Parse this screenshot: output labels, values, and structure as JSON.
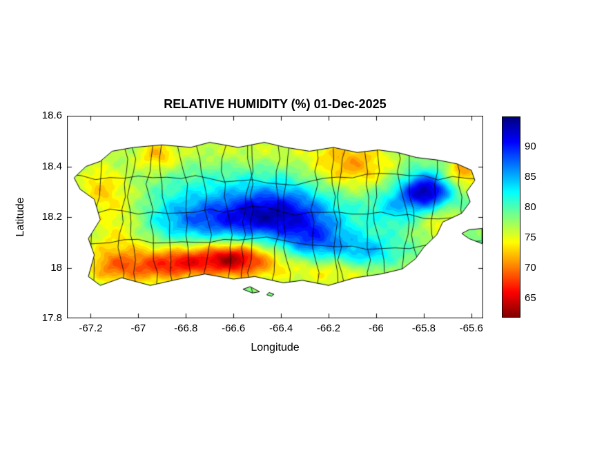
{
  "figure": {
    "background": "#ffffff"
  },
  "chart_data": {
    "type": "heatmap",
    "title": "RELATIVE HUMIDITY (%) 01-Dec-2025",
    "xlabel": "Longitude",
    "ylabel": "Latitude",
    "region": "Puerto Rico",
    "units": "%",
    "grid": false,
    "xlim": [
      -67.3,
      -65.55
    ],
    "ylim": [
      17.8,
      18.6
    ],
    "xticks": [
      -67.2,
      -67,
      -66.8,
      -66.6,
      -66.4,
      -66.2,
      -66,
      -65.8,
      -65.6
    ],
    "xtick_labels": [
      "-67.2",
      "-67",
      "-66.8",
      "-66.6",
      "-66.4",
      "-66.2",
      "-66",
      "-65.8",
      "-65.6"
    ],
    "yticks": [
      17.8,
      18,
      18.2,
      18.4,
      18.6
    ],
    "ytick_labels": [
      "17.8",
      "18",
      "18.2",
      "18.4",
      "18.6"
    ],
    "line_color": "#000000",
    "levels": 33,
    "colorbar": {
      "position": "right",
      "colormap": "jet-flipped",
      "clim": [
        62,
        95
      ],
      "ticks": [
        65,
        70,
        75,
        80,
        85,
        90
      ],
      "tick_labels": [
        "65",
        "70",
        "75",
        "80",
        "85",
        "90"
      ]
    },
    "field": {
      "base": 79,
      "ripple": {
        "amp": 0.9,
        "fx": 41,
        "fy": 57
      },
      "blobs": [
        {
          "lon": -66.62,
          "lat": 18.19,
          "slon": 0.26,
          "slat": 0.065,
          "amp": 10
        },
        {
          "lon": -66.4,
          "lat": 18.23,
          "slon": 0.14,
          "slat": 0.07,
          "amp": 7
        },
        {
          "lon": -66.26,
          "lat": 18.1,
          "slon": 0.1,
          "slat": 0.06,
          "amp": 8
        },
        {
          "lon": -66.04,
          "lat": 18.05,
          "slon": 0.09,
          "slat": 0.05,
          "amp": 7
        },
        {
          "lon": -65.79,
          "lat": 18.3,
          "slon": 0.075,
          "slat": 0.05,
          "amp": 15
        },
        {
          "lon": -66.62,
          "lat": 18.03,
          "slon": 0.15,
          "slat": 0.055,
          "amp": -13
        },
        {
          "lon": -66.6,
          "lat": 18.04,
          "slon": 0.06,
          "slat": 0.03,
          "amp": -3
        },
        {
          "lon": -67.08,
          "lat": 18.17,
          "slon": 0.11,
          "slat": 0.13,
          "amp": -6
        },
        {
          "lon": -67.17,
          "lat": 18.33,
          "slon": 0.07,
          "slat": 0.07,
          "amp": -4
        },
        {
          "lon": -66.92,
          "lat": 18.44,
          "slon": 0.06,
          "slat": 0.045,
          "amp": -5
        },
        {
          "lon": -66.1,
          "lat": 18.4,
          "slon": 0.13,
          "slat": 0.07,
          "amp": -7
        },
        {
          "lon": -65.63,
          "lat": 18.38,
          "slon": 0.06,
          "slat": 0.05,
          "amp": -8
        },
        {
          "lon": -65.72,
          "lat": 18.17,
          "slon": 0.07,
          "slat": 0.06,
          "amp": -5
        },
        {
          "lon": -66.15,
          "lat": 17.99,
          "slon": 0.18,
          "slat": 0.05,
          "amp": -6
        },
        {
          "lon": -66.95,
          "lat": 18.0,
          "slon": 0.1,
          "slat": 0.05,
          "amp": -7
        },
        {
          "lon": -66.82,
          "lat": 18.02,
          "slon": 0.08,
          "slat": 0.04,
          "amp": -5
        },
        {
          "lon": -67.13,
          "lat": 18.0,
          "slon": 0.08,
          "slat": 0.05,
          "amp": -5
        },
        {
          "lon": -66.55,
          "lat": 18.47,
          "slon": 0.35,
          "slat": 0.05,
          "amp": -3
        },
        {
          "lon": -66.6,
          "lat": 18.31,
          "slon": 0.25,
          "slat": 0.06,
          "amp": 2
        },
        {
          "lon": -65.93,
          "lat": 18.24,
          "slon": 0.07,
          "slat": 0.05,
          "amp": 4
        }
      ]
    },
    "coastline": [
      [
        -67.27,
        18.355
      ],
      [
        -67.22,
        18.4
      ],
      [
        -67.16,
        18.42
      ],
      [
        -67.11,
        18.46
      ],
      [
        -67.02,
        18.475
      ],
      [
        -66.9,
        18.485
      ],
      [
        -66.78,
        18.475
      ],
      [
        -66.7,
        18.495
      ],
      [
        -66.58,
        18.475
      ],
      [
        -66.47,
        18.495
      ],
      [
        -66.38,
        18.475
      ],
      [
        -66.28,
        18.46
      ],
      [
        -66.18,
        18.475
      ],
      [
        -66.08,
        18.455
      ],
      [
        -65.99,
        18.465
      ],
      [
        -65.91,
        18.455
      ],
      [
        -65.83,
        18.435
      ],
      [
        -65.74,
        18.425
      ],
      [
        -65.66,
        18.41
      ],
      [
        -65.6,
        18.385
      ],
      [
        -65.585,
        18.345
      ],
      [
        -65.62,
        18.3
      ],
      [
        -65.605,
        18.26
      ],
      [
        -65.64,
        18.215
      ],
      [
        -65.72,
        18.18
      ],
      [
        -65.745,
        18.13
      ],
      [
        -65.8,
        18.08
      ],
      [
        -65.835,
        18.035
      ],
      [
        -65.89,
        17.995
      ],
      [
        -65.98,
        17.975
      ],
      [
        -66.09,
        17.96
      ],
      [
        -66.2,
        17.93
      ],
      [
        -66.31,
        17.95
      ],
      [
        -66.39,
        17.94
      ],
      [
        -66.51,
        17.965
      ],
      [
        -66.6,
        17.955
      ],
      [
        -66.72,
        17.975
      ],
      [
        -66.83,
        17.955
      ],
      [
        -66.95,
        17.93
      ],
      [
        -67.07,
        17.96
      ],
      [
        -67.16,
        17.93
      ],
      [
        -67.21,
        17.965
      ],
      [
        -67.185,
        18.05
      ],
      [
        -67.21,
        18.115
      ],
      [
        -67.16,
        18.19
      ],
      [
        -67.185,
        18.27
      ],
      [
        -67.245,
        18.31
      ]
    ],
    "islets": [
      [
        [
          -66.56,
          17.915
        ],
        [
          -66.52,
          17.9
        ],
        [
          -66.49,
          17.905
        ],
        [
          -66.53,
          17.925
        ]
      ],
      [
        [
          -66.46,
          17.893
        ],
        [
          -66.44,
          17.887
        ],
        [
          -66.43,
          17.895
        ],
        [
          -66.45,
          17.902
        ]
      ],
      [
        [
          -65.555,
          18.095
        ],
        [
          -65.61,
          18.115
        ],
        [
          -65.64,
          18.135
        ],
        [
          -65.61,
          18.15
        ],
        [
          -65.555,
          18.155
        ]
      ]
    ],
    "boundaries": {
      "style": "approximate-municipal",
      "seed": 11,
      "jitter": 0.035,
      "horizontal_lats": [
        18.09,
        18.23,
        18.37
      ],
      "vertical": {
        "count": 21,
        "lon_start": -67.17,
        "lon_end": -65.66
      }
    }
  }
}
